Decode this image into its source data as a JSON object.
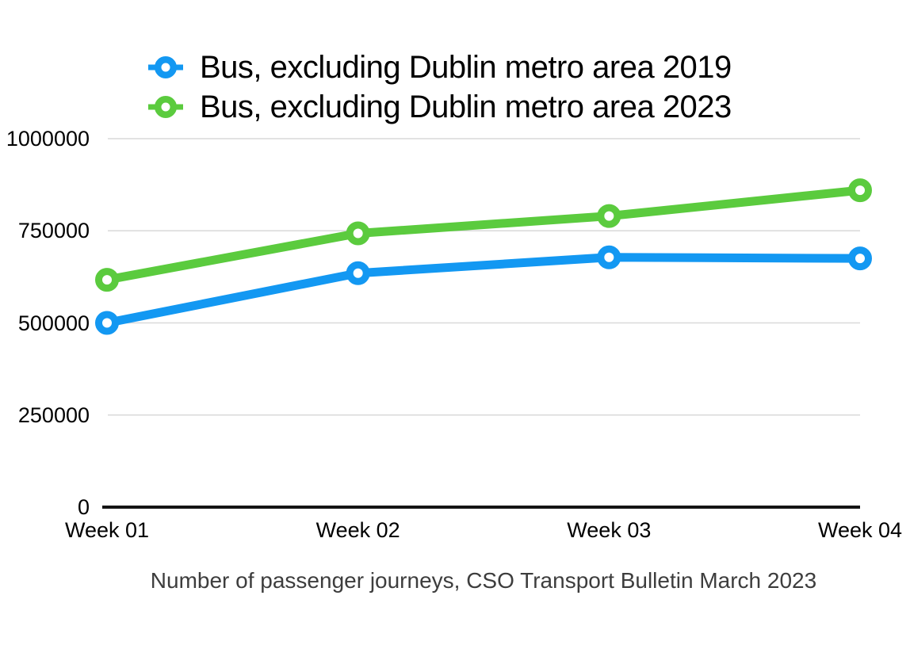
{
  "chart_data": {
    "type": "line",
    "title": "",
    "caption": "Number of passenger journeys, CSO Transport Bulletin March 2023",
    "categories": [
      "Week 01",
      "Week 02",
      "Week 03",
      "Week 04"
    ],
    "series": [
      {
        "name": "Bus, excluding Dublin metro area 2019",
        "color": "#1398F2",
        "marker": "ring",
        "values": [
          500000,
          635000,
          678000,
          675000
        ]
      },
      {
        "name": "Bus, excluding Dublin metro area 2023",
        "color": "#5BCB3E",
        "marker": "ring",
        "values": [
          617000,
          743000,
          790000,
          860000
        ]
      }
    ],
    "ylim": [
      0,
      1000000
    ],
    "yticks": [
      0,
      250000,
      500000,
      750000,
      1000000
    ],
    "grid": true,
    "legend_position": "top",
    "colors": {
      "gridline": "#d9d9d9",
      "axis": "#141414",
      "tick_text": "#000000",
      "caption_text": "#3d3d3d",
      "background": "#ffffff"
    }
  }
}
